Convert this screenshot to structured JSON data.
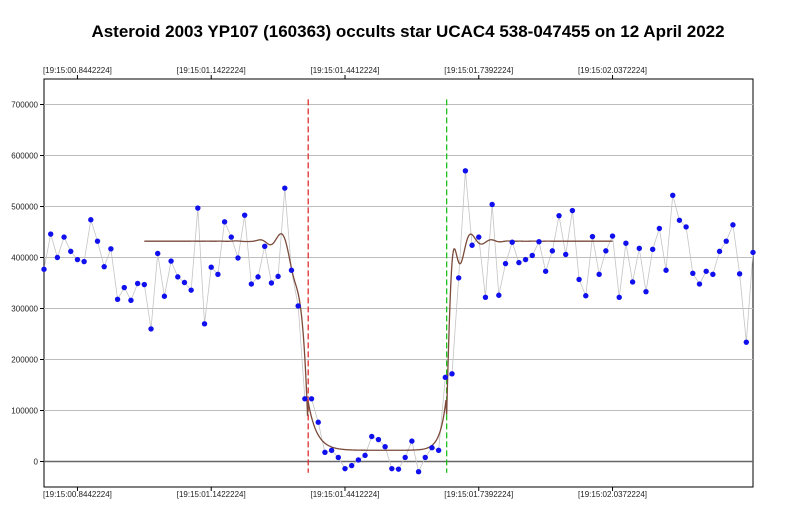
{
  "chart_data": {
    "type": "scatter",
    "title": "Asteroid 2003 YP107 (160363) occults star UCAC4 538-047455 on 12 April 2022",
    "xlabel": "",
    "ylabel": "",
    "ylim": [
      -50000,
      750000
    ],
    "xlim": [
      0,
      106
    ],
    "grid": true,
    "yticks": [
      0,
      100000,
      200000,
      300000,
      400000,
      500000,
      600000,
      700000
    ],
    "ytick_labels": [
      "0",
      "100000",
      "200000",
      "300000",
      "400000",
      "500000",
      "600000",
      "700000"
    ],
    "xticks": [
      {
        "x": 5,
        "label": "[19:15:00.8442224]"
      },
      {
        "x": 25,
        "label": "[19:15:01.1422224]"
      },
      {
        "x": 45,
        "label": "[19:15:01.4412224]"
      },
      {
        "x": 65,
        "label": "[19:15:01.7392224]"
      },
      {
        "x": 85,
        "label": "[19:15:02.0372224]"
      }
    ],
    "markers": [
      {
        "name": "disappearance",
        "x": 39.5,
        "color": "#e03030"
      },
      {
        "name": "reappearance",
        "x": 60.2,
        "color": "#20c020"
      }
    ],
    "series": [
      {
        "name": "",
        "color": "#1010ee",
        "values": [
          377000,
          446000,
          400000,
          440000,
          412000,
          396000,
          392000,
          474000,
          432000,
          382000,
          417000,
          318000,
          341000,
          316000,
          349000,
          347000,
          260000,
          408000,
          324000,
          393000,
          362000,
          351000,
          336000,
          497000,
          270000,
          381000,
          367000,
          470000,
          440000,
          399000,
          483000,
          348000,
          362000,
          422000,
          350000,
          363000,
          536000,
          375000,
          305000,
          123000,
          123000,
          77000,
          18000,
          22000,
          8000,
          -14000,
          -8000,
          3000,
          12000,
          49000,
          43000,
          29000,
          -14000,
          -15000,
          8000,
          40000,
          -20000,
          8000,
          27000,
          22000,
          165000,
          172000,
          360000,
          570000,
          424000,
          440000,
          322000,
          504000,
          326000,
          388000,
          430000,
          390000,
          396000,
          404000,
          431000,
          373000,
          413000,
          482000,
          406000,
          492000,
          357000,
          325000,
          441000,
          367000,
          413000,
          442000,
          322000,
          428000,
          352000,
          418000,
          333000,
          416000,
          457000,
          375000,
          522000,
          473000,
          460000,
          369000,
          348000,
          373000,
          367000,
          412000,
          432000,
          464000,
          368000,
          234000,
          410000
        ]
      }
    ],
    "model_curve": {
      "color": "#7a4a3a",
      "baseline": 432000,
      "bottom": 22000,
      "x_start": 15,
      "x_end": 85
    }
  }
}
